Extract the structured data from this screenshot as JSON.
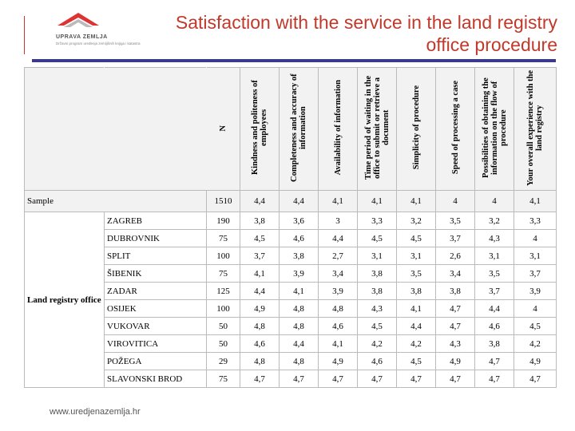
{
  "logo": {
    "name": "UPRAVA ZEMLJA",
    "tagline": "Državni program uređenja zemljišnih knjiga i katastra"
  },
  "title": "Satisfaction with the service in the land registry office procedure",
  "headers": {
    "n": "N",
    "columns": [
      "Kindness and politeness of employees",
      "Completeness and accuracy of information",
      "Availability of information",
      "Time period of waiting in the office to submit or retrieve a document",
      "Simplicity of procedure",
      "Speed of processing a case",
      "Possibilities of obtaining the information on the flow of procedure",
      "Your overall experience with the land registry"
    ]
  },
  "sample": {
    "label": "Sample",
    "n": "1510",
    "values": [
      "4,4",
      "4,4",
      "4,1",
      "4,1",
      "4,1",
      "4",
      "4",
      "4,1"
    ]
  },
  "group_label": "Land registry office",
  "offices": [
    {
      "name": "ZAGREB",
      "n": "190",
      "values": [
        "3,8",
        "3,6",
        "3",
        "3,3",
        "3,2",
        "3,5",
        "3,2",
        "3,3"
      ]
    },
    {
      "name": "DUBROVNIK",
      "n": "75",
      "values": [
        "4,5",
        "4,6",
        "4,4",
        "4,5",
        "4,5",
        "3,7",
        "4,3",
        "4"
      ]
    },
    {
      "name": "SPLIT",
      "n": "100",
      "values": [
        "3,7",
        "3,8",
        "2,7",
        "3,1",
        "3,1",
        "2,6",
        "3,1",
        "3,1"
      ]
    },
    {
      "name": "ŠIBENIK",
      "n": "75",
      "values": [
        "4,1",
        "3,9",
        "3,4",
        "3,8",
        "3,5",
        "3,4",
        "3,5",
        "3,7"
      ]
    },
    {
      "name": "ZADAR",
      "n": "125",
      "values": [
        "4,4",
        "4,1",
        "3,9",
        "3,8",
        "3,8",
        "3,8",
        "3,7",
        "3,9"
      ]
    },
    {
      "name": "OSIJEK",
      "n": "100",
      "values": [
        "4,9",
        "4,8",
        "4,8",
        "4,3",
        "4,1",
        "4,7",
        "4,4",
        "4"
      ]
    },
    {
      "name": "VUKOVAR",
      "n": "50",
      "values": [
        "4,8",
        "4,8",
        "4,6",
        "4,5",
        "4,4",
        "4,7",
        "4,6",
        "4,5"
      ]
    },
    {
      "name": "VIROVITICA",
      "n": "50",
      "values": [
        "4,6",
        "4,4",
        "4,1",
        "4,2",
        "4,2",
        "4,3",
        "3,8",
        "4,2"
      ]
    },
    {
      "name": "POŽEGA",
      "n": "29",
      "values": [
        "4,8",
        "4,8",
        "4,9",
        "4,6",
        "4,5",
        "4,9",
        "4,7",
        "4,9"
      ]
    },
    {
      "name": "SLAVONSKI BROD",
      "n": "75",
      "values": [
        "4,7",
        "4,7",
        "4,7",
        "4,7",
        "4,7",
        "4,7",
        "4,7",
        "4,7"
      ]
    }
  ],
  "footer": "www.uredjenazemlja.hr",
  "colors": {
    "title": "#c0392b",
    "bar": "#3a3a8c"
  }
}
